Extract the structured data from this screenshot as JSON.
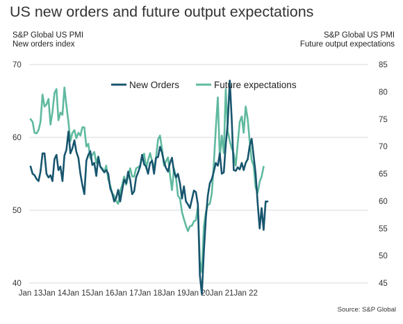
{
  "chart_data": {
    "type": "line",
    "title": "US new orders and future output expectations",
    "y_left_label": [
      "S&P Global US PMI",
      "New orders index"
    ],
    "y_right_label": [
      "S&P Global US PMI",
      "Future output expectations"
    ],
    "source": "Source: S&P Global",
    "x_start": "Jan 2013",
    "x_ticks": [
      "Jan 13",
      "Jan 14",
      "Jan 15",
      "Jan 16",
      "Jan 17",
      "Jan 18",
      "Jan 19",
      "Jan 20",
      "Jan 21",
      "Jan 22"
    ],
    "y_left_ticks": [
      "40",
      "50",
      "60",
      "70"
    ],
    "y_left_range": [
      40,
      70
    ],
    "y_right_ticks": [
      "45",
      "50",
      "55",
      "60",
      "65",
      "70",
      "75",
      "80",
      "85"
    ],
    "y_right_range": [
      45,
      85
    ],
    "grid": true,
    "legend_position": "top-center",
    "series": [
      {
        "name": "New Orders",
        "axis": "left",
        "color": "#17556e",
        "values": [
          56.0,
          55.0,
          54.8,
          54.3,
          54.0,
          55.3,
          57.8,
          57.8,
          55.0,
          54.5,
          54.8,
          54.0,
          57.0,
          57.6,
          55.5,
          56.0,
          54.0,
          57.5,
          58.3,
          60.8,
          57.8,
          58.5,
          59.6,
          58.0,
          57.2,
          55.0,
          53.5,
          52.2,
          56.8,
          57.6,
          58.1,
          56.2,
          56.5,
          54.7,
          57.3,
          56.0,
          55.6,
          55.2,
          55.5,
          55.0,
          53.0,
          52.3,
          51.2,
          51.7,
          52.8,
          51.2,
          52.8,
          54.2,
          53.7,
          55.3,
          54.2,
          52.2,
          52.6,
          54.5,
          55.2,
          56.0,
          57.6,
          56.3,
          56.0,
          55.0,
          56.5,
          56.8,
          55.0,
          57.2,
          57.3,
          58.7,
          57.9,
          56.6,
          55.8,
          55.3,
          56.5,
          57.2,
          55.3,
          54.5,
          55.0,
          53.7,
          51.6,
          53.3,
          51.2,
          50.8,
          50.3,
          51.5,
          52.7,
          52.5,
          50.8,
          41.0,
          38.5,
          44.3,
          49.0,
          52.0,
          53.7,
          54.3,
          55.3,
          56.5,
          56.1,
          57.8,
          55.0,
          55.2,
          59.0,
          62.0,
          67.8,
          62.5,
          55.5,
          55.4,
          55.9,
          55.6,
          56.5,
          55.5,
          56.5,
          57.0,
          58.8,
          59.8,
          57.4,
          55.0,
          51.0,
          47.5,
          50.3,
          47.3,
          51.2,
          51.2
        ]
      },
      {
        "name": "Future expectations",
        "axis": "right",
        "color": "#5fb99f",
        "values": [
          75.0,
          74.5,
          72.5,
          72.4,
          73.0,
          74.5,
          79.5,
          77.3,
          77.7,
          78.7,
          74.0,
          76.3,
          79.8,
          80.5,
          74.8,
          76.2,
          75.8,
          80.8,
          77.5,
          74.5,
          71.0,
          72.5,
          73.0,
          71.5,
          72.5,
          72.0,
          73.5,
          73.5,
          70.0,
          70.5,
          67.8,
          68.5,
          69.0,
          67.0,
          68.2,
          66.3,
          66.0,
          65.3,
          66.5,
          64.0,
          62.8,
          61.5,
          61.0,
          60.0,
          59.5,
          61.8,
          63.0,
          64.5,
          63.0,
          64.5,
          66.0,
          64.5,
          64.5,
          66.0,
          66.2,
          66.5,
          68.0,
          68.7,
          66.0,
          67.5,
          68.8,
          67.3,
          66.0,
          68.0,
          71.3,
          72.0,
          69.5,
          66.5,
          67.3,
          68.0,
          64.8,
          62.0,
          66.0,
          64.3,
          61.0,
          60.5,
          58.0,
          56.7,
          55.5,
          54.5,
          55.4,
          55.5,
          56.3,
          56.5,
          59.0,
          49.0,
          47.0,
          55.3,
          58.0,
          59.3,
          59.5,
          61.5,
          66.8,
          73.3,
          79.0,
          68.0,
          72.0,
          68.8,
          80.5,
          72.8,
          71.0,
          69.7,
          68.7,
          66.5,
          70.5,
          74.5,
          75.5,
          72.5,
          77.3,
          75.0,
          71.0,
          67.5,
          66.5,
          62.5,
          61.5,
          63.5,
          64.5,
          66.3
        ]
      }
    ]
  }
}
